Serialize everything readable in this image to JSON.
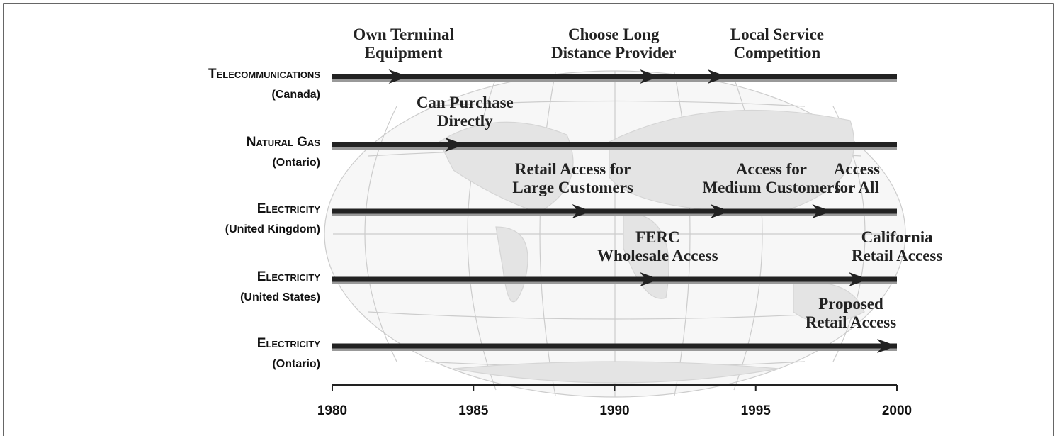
{
  "chart_data": {
    "type": "timeline",
    "xlim": [
      1980,
      2000
    ],
    "xticks": [
      1980,
      1985,
      1990,
      1995,
      2000
    ],
    "rows": [
      {
        "label": "Telecommunications",
        "sublabel": "(Canada)",
        "events": [
          {
            "text": [
              "Own Terminal",
              "Equipment"
            ],
            "year": 1982.7
          },
          {
            "text": [
              "Choose Long",
              "Distance Provider"
            ],
            "year": 1991.6
          },
          {
            "text": [
              "Local Service",
              "Competition"
            ],
            "year": 1994.0
          }
        ]
      },
      {
        "label": "Natural Gas",
        "sublabel": "(Ontario)",
        "events": [
          {
            "text": [
              "Can Purchase",
              "Directly"
            ],
            "year": 1984.7
          }
        ]
      },
      {
        "label": "Electricity",
        "sublabel": "(United Kingdom)",
        "events": [
          {
            "text": [
              "Retail Access for",
              "Large Customers"
            ],
            "year": 1989.2
          },
          {
            "text": [
              "Access for",
              "Medium Customers"
            ],
            "year": 1994.1
          },
          {
            "text": [
              "Access",
              "for All"
            ],
            "year": 1997.7
          }
        ]
      },
      {
        "label": "Electricity",
        "sublabel": "(United States)",
        "events": [
          {
            "text": [
              "FERC",
              "Wholesale Access"
            ],
            "year": 1991.6
          },
          {
            "text": [
              "California",
              "Retail Access"
            ],
            "year": 1999.0
          }
        ]
      },
      {
        "label": "Electricity",
        "sublabel": "(Ontario)",
        "events": [
          {
            "text": [
              "Proposed",
              "Retail Access"
            ],
            "year": 2000
          }
        ]
      }
    ]
  }
}
